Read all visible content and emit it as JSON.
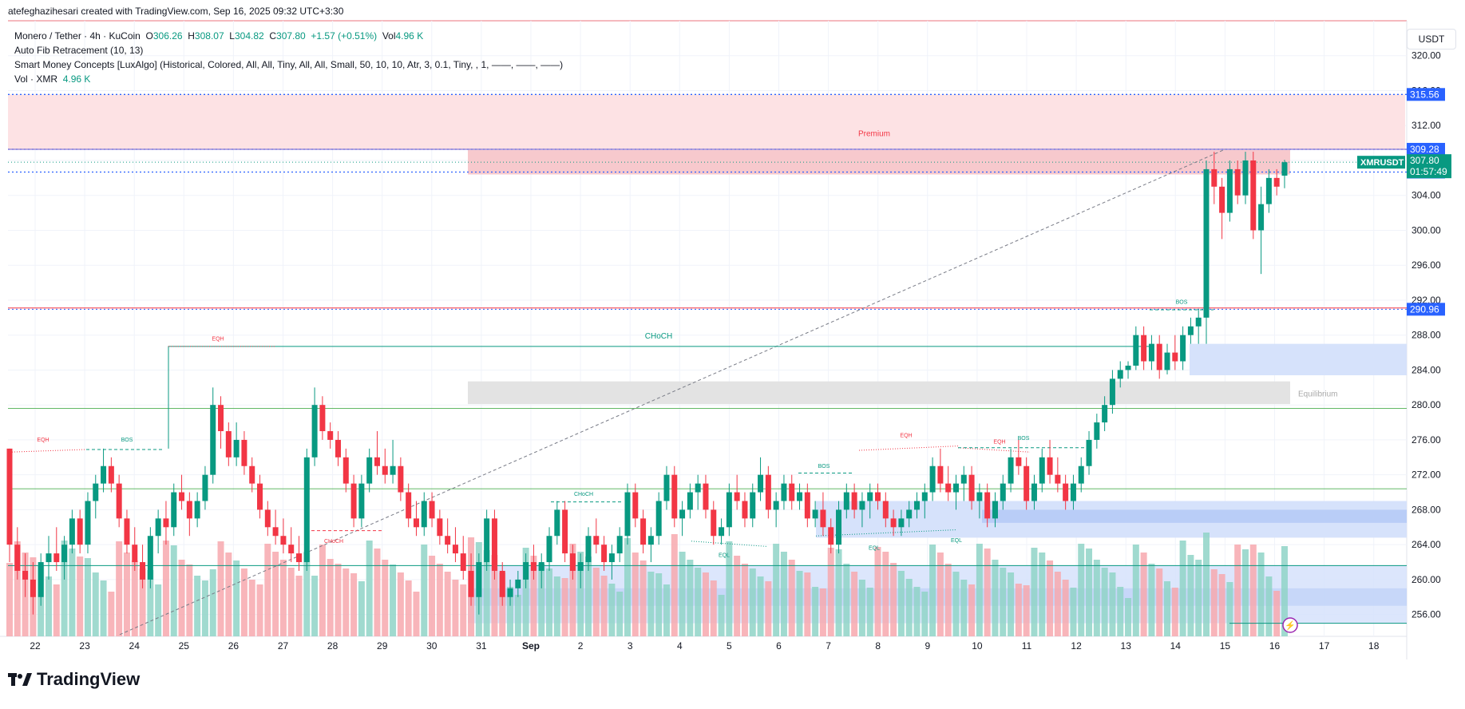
{
  "header": {
    "created_by": "atefeghazihesari created with TradingView.com, Sep 16, 2025 09:32 UTC+3:30"
  },
  "legend": {
    "symbol": "Monero / Tether · 4h · KuCoin",
    "o_label": "O",
    "o_value": "306.26",
    "h_label": "H",
    "h_value": "308.07",
    "l_label": "L",
    "l_value": "304.82",
    "c_label": "C",
    "c_value": "307.80",
    "change": "+1.57 (+0.51%)",
    "vol_label": "Vol",
    "vol_value": "4.96 K",
    "indicator1": "Auto Fib Retracement (10, 13)",
    "indicator2": "Smart Money Concepts [LuxAlgo] (Historical, Colored, All, All, Tiny, All, All, Small, 50, 10, 10, Atr, 3, 0.1, Tiny, , 1, ——, ——, ——)",
    "vol_indicator": "Vol · XMR",
    "vol_indicator_value": "4.96 K"
  },
  "y_axis": {
    "unit": "USDT",
    "ticks": [
      "320.00",
      "316.00",
      "312.00",
      "308.00",
      "304.00",
      "300.00",
      "296.00",
      "292.00",
      "288.00",
      "284.00",
      "280.00",
      "276.00",
      "272.00",
      "268.00",
      "264.00",
      "260.00",
      "256.00"
    ],
    "price_badges": [
      {
        "value": "315.56",
        "color": "#2962ff"
      },
      {
        "value": "309.28",
        "color": "#2962ff"
      },
      {
        "value": "306.67",
        "color": "#2962ff"
      },
      {
        "value": "290.96",
        "color": "#2962ff"
      }
    ],
    "current": {
      "symbol": "XMRUSDT",
      "price": "307.80",
      "countdown": "01:57:49",
      "color": "#089981"
    }
  },
  "x_axis": {
    "ticks": [
      "22",
      "23",
      "24",
      "25",
      "26",
      "27",
      "28",
      "29",
      "30",
      "31",
      "Sep",
      "2",
      "3",
      "4",
      "5",
      "6",
      "7",
      "8",
      "9",
      "10",
      "11",
      "12",
      "13",
      "14",
      "15",
      "16",
      "17",
      "18"
    ]
  },
  "annotations": {
    "premium": "Premium",
    "equilibrium": "Equilibrium",
    "choch_main": "CHoCH",
    "eqh": "EQH",
    "bos": "BOS",
    "eql": "EQL",
    "choch_small": "CHoCH"
  },
  "chart_data": {
    "type": "candlestick",
    "title": "",
    "xlabel": "",
    "ylabel": "",
    "ylim": [
      253.5,
      324
    ],
    "candles_ohlc": [
      [
        275.0,
        275.0,
        262.0,
        264.0
      ],
      [
        264.0,
        266.0,
        260.0,
        261.0
      ],
      [
        261.0,
        263.0,
        258.0,
        260.0
      ],
      [
        260.0,
        262.0,
        256.0,
        258.0
      ],
      [
        258.0,
        263.0,
        257.0,
        262.0
      ],
      [
        262.0,
        265.0,
        260.0,
        263.0
      ],
      [
        263.0,
        266.0,
        261.0,
        262.0
      ],
      [
        262.0,
        265.0,
        260.0,
        264.0
      ],
      [
        264.0,
        268.0,
        263.0,
        267.0
      ],
      [
        267.0,
        268.0,
        263.0,
        264.0
      ],
      [
        264.0,
        270.0,
        263.0,
        269.0
      ],
      [
        269.0,
        272.0,
        267.0,
        271.0
      ],
      [
        271.0,
        275.0,
        270.0,
        273.0
      ],
      [
        273.0,
        274.0,
        270.0,
        271.0
      ],
      [
        271.0,
        272.0,
        266.0,
        267.0
      ],
      [
        267.0,
        268.0,
        263.0,
        264.0
      ],
      [
        264.0,
        266.0,
        261.0,
        262.0
      ],
      [
        262.0,
        264.0,
        259.0,
        260.0
      ],
      [
        260.0,
        266.0,
        259.0,
        265.0
      ],
      [
        265.0,
        268.0,
        263.0,
        267.0
      ],
      [
        267.0,
        269.0,
        264.0,
        266.0
      ],
      [
        266.0,
        271.0,
        265.0,
        270.0
      ],
      [
        270.0,
        272.0,
        268.0,
        269.0
      ],
      [
        269.0,
        270.0,
        265.0,
        267.0
      ],
      [
        267.0,
        270.0,
        266.0,
        269.0
      ],
      [
        269.0,
        273.0,
        268.0,
        272.0
      ],
      [
        272.0,
        282.0,
        271.0,
        280.0
      ],
      [
        280.0,
        281.0,
        275.0,
        277.0
      ],
      [
        277.0,
        278.0,
        273.0,
        274.0
      ],
      [
        274.0,
        278.0,
        273.0,
        276.0
      ],
      [
        276.0,
        277.0,
        272.0,
        273.0
      ],
      [
        273.0,
        274.0,
        270.0,
        271.0
      ],
      [
        271.0,
        272.0,
        267.0,
        268.0
      ],
      [
        268.0,
        269.0,
        265.0,
        266.0
      ],
      [
        266.0,
        268.0,
        264.0,
        265.0
      ],
      [
        265.0,
        267.0,
        263.0,
        264.0
      ],
      [
        264.0,
        266.0,
        262.0,
        263.0
      ],
      [
        263.0,
        265.0,
        261.0,
        262.0
      ],
      [
        262.0,
        275.0,
        261.0,
        274.0
      ],
      [
        274.0,
        282.0,
        273.0,
        280.0
      ],
      [
        280.0,
        281.0,
        276.0,
        277.0
      ],
      [
        277.0,
        278.0,
        275.0,
        276.0
      ],
      [
        276.0,
        277.0,
        273.0,
        274.0
      ],
      [
        274.0,
        275.0,
        270.0,
        271.0
      ],
      [
        271.0,
        272.0,
        266.0,
        267.0
      ],
      [
        267.0,
        272.0,
        266.0,
        271.0
      ],
      [
        271.0,
        275.0,
        270.0,
        274.0
      ],
      [
        274.0,
        277.0,
        272.0,
        273.0
      ],
      [
        273.0,
        275.0,
        271.0,
        272.0
      ],
      [
        272.0,
        276.0,
        271.0,
        273.0
      ],
      [
        273.0,
        274.0,
        269.0,
        270.0
      ],
      [
        270.0,
        271.0,
        266.0,
        267.0
      ],
      [
        267.0,
        269.0,
        265.0,
        266.0
      ],
      [
        266.0,
        270.0,
        265.0,
        269.0
      ],
      [
        269.0,
        270.0,
        266.0,
        267.0
      ],
      [
        267.0,
        268.0,
        264.0,
        265.0
      ],
      [
        265.0,
        267.0,
        263.0,
        264.0
      ],
      [
        264.0,
        266.0,
        262.0,
        263.0
      ],
      [
        263.0,
        265.0,
        260.0,
        261.0
      ],
      [
        261.0,
        263.0,
        257.0,
        258.0
      ],
      [
        258.0,
        263.0,
        256.0,
        262.0
      ],
      [
        262.0,
        268.0,
        261.0,
        267.0
      ],
      [
        267.0,
        268.0,
        260.0,
        261.0
      ],
      [
        261.0,
        262.0,
        257.0,
        258.0
      ],
      [
        258.0,
        260.0,
        257.0,
        259.0
      ],
      [
        259.0,
        261.0,
        258.0,
        260.0
      ],
      [
        260.0,
        263.0,
        259.0,
        262.0
      ],
      [
        262.0,
        264.0,
        260.0,
        261.0
      ],
      [
        261.0,
        263.0,
        259.0,
        262.0
      ],
      [
        262.0,
        266.0,
        261.0,
        265.0
      ],
      [
        265.0,
        269.0,
        264.0,
        268.0
      ],
      [
        268.0,
        269.0,
        262.0,
        263.0
      ],
      [
        263.0,
        264.0,
        260.0,
        261.0
      ],
      [
        261.0,
        263.0,
        259.0,
        262.0
      ],
      [
        262.0,
        266.0,
        261.0,
        265.0
      ],
      [
        265.0,
        267.0,
        263.0,
        264.0
      ],
      [
        264.0,
        265.0,
        261.0,
        262.0
      ],
      [
        262.0,
        264.0,
        260.0,
        263.0
      ],
      [
        263.0,
        266.0,
        262.0,
        265.0
      ],
      [
        265.0,
        271.0,
        264.0,
        270.0
      ],
      [
        270.0,
        271.0,
        266.0,
        267.0
      ],
      [
        267.0,
        268.0,
        263.0,
        264.0
      ],
      [
        264.0,
        266.0,
        262.0,
        265.0
      ],
      [
        265.0,
        270.0,
        264.0,
        269.0
      ],
      [
        269.0,
        273.0,
        268.0,
        272.0
      ],
      [
        272.0,
        273.0,
        266.0,
        267.0
      ],
      [
        267.0,
        269.0,
        265.0,
        268.0
      ],
      [
        268.0,
        271.0,
        267.0,
        270.0
      ],
      [
        270.0,
        272.0,
        268.0,
        271.0
      ],
      [
        271.0,
        272.0,
        267.0,
        268.0
      ],
      [
        268.0,
        269.0,
        264.0,
        265.0
      ],
      [
        265.0,
        267.0,
        264.0,
        266.0
      ],
      [
        266.0,
        271.0,
        265.0,
        270.0
      ],
      [
        270.0,
        272.0,
        268.0,
        269.0
      ],
      [
        269.0,
        270.0,
        266.0,
        267.0
      ],
      [
        267.0,
        271.0,
        266.0,
        270.0
      ],
      [
        270.0,
        274.0,
        269.0,
        272.0
      ],
      [
        272.0,
        273.0,
        267.0,
        268.0
      ],
      [
        268.0,
        270.0,
        266.0,
        269.0
      ],
      [
        269.0,
        272.0,
        268.0,
        271.0
      ],
      [
        271.0,
        272.0,
        268.0,
        269.0
      ],
      [
        269.0,
        271.0,
        268.0,
        270.0
      ],
      [
        270.0,
        271.0,
        266.0,
        267.0
      ],
      [
        267.0,
        269.0,
        266.0,
        268.0
      ],
      [
        268.0,
        270.0,
        265.0,
        266.0
      ],
      [
        266.0,
        267.0,
        263.0,
        264.0
      ],
      [
        264.0,
        269.0,
        263.0,
        268.0
      ],
      [
        268.0,
        271.0,
        267.0,
        270.0
      ],
      [
        270.0,
        271.0,
        267.0,
        268.0
      ],
      [
        268.0,
        270.0,
        266.0,
        269.0
      ],
      [
        269.0,
        271.0,
        267.0,
        270.0
      ],
      [
        270.0,
        271.0,
        268.0,
        269.0
      ],
      [
        269.0,
        270.0,
        266.0,
        267.0
      ],
      [
        267.0,
        268.0,
        265.0,
        266.0
      ],
      [
        266.0,
        268.0,
        265.0,
        267.0
      ],
      [
        267.0,
        269.0,
        266.0,
        268.0
      ],
      [
        268.0,
        270.0,
        267.0,
        269.0
      ],
      [
        269.0,
        271.0,
        267.0,
        270.0
      ],
      [
        270.0,
        274.0,
        269.0,
        273.0
      ],
      [
        273.0,
        275.0,
        270.0,
        271.0
      ],
      [
        271.0,
        273.0,
        269.0,
        270.0
      ],
      [
        270.0,
        272.0,
        268.0,
        271.0
      ],
      [
        271.0,
        273.0,
        269.0,
        272.0
      ],
      [
        272.0,
        273.0,
        268.0,
        269.0
      ],
      [
        269.0,
        271.0,
        267.0,
        270.0
      ],
      [
        270.0,
        271.0,
        266.0,
        267.0
      ],
      [
        267.0,
        270.0,
        266.0,
        269.0
      ],
      [
        269.0,
        272.0,
        268.0,
        271.0
      ],
      [
        271.0,
        275.0,
        270.0,
        274.0
      ],
      [
        274.0,
        276.0,
        272.0,
        273.0
      ],
      [
        273.0,
        274.0,
        268.0,
        269.0
      ],
      [
        269.0,
        272.0,
        268.0,
        271.0
      ],
      [
        271.0,
        275.0,
        270.0,
        274.0
      ],
      [
        274.0,
        276.0,
        271.0,
        272.0
      ],
      [
        272.0,
        274.0,
        270.0,
        271.0
      ],
      [
        271.0,
        272.0,
        268.0,
        269.0
      ],
      [
        269.0,
        272.0,
        268.0,
        271.0
      ],
      [
        271.0,
        274.0,
        270.0,
        273.0
      ],
      [
        273.0,
        277.0,
        272.0,
        276.0
      ],
      [
        276.0,
        279.0,
        275.0,
        278.0
      ],
      [
        278.0,
        281.0,
        277.0,
        280.0
      ],
      [
        280.0,
        284.0,
        279.0,
        283.0
      ],
      [
        283.0,
        285.0,
        282.0,
        284.0
      ],
      [
        284.0,
        285.0,
        283.0,
        284.5
      ],
      [
        284.5,
        289.0,
        284.0,
        288.0
      ],
      [
        288.0,
        289.0,
        284.0,
        285.0
      ],
      [
        285.0,
        288.0,
        284.0,
        287.0
      ],
      [
        287.0,
        288.0,
        283.0,
        284.0
      ],
      [
        284.0,
        287.0,
        283.5,
        286.0
      ],
      [
        286.0,
        288.0,
        284.0,
        285.0
      ],
      [
        285.0,
        289.0,
        284.0,
        288.0
      ],
      [
        288.0,
        290.0,
        287.0,
        289.0
      ],
      [
        289.0,
        291.0,
        287.0,
        290.0
      ],
      [
        290.0,
        308.0,
        287.0,
        307.0
      ],
      [
        307.0,
        309.0,
        303.0,
        305.0
      ],
      [
        305.0,
        306.0,
        299.0,
        302.0
      ],
      [
        302.0,
        308.0,
        301.0,
        307.0
      ],
      [
        307.0,
        308.0,
        303.0,
        304.0
      ],
      [
        304.0,
        309.0,
        303.0,
        308.0
      ],
      [
        308.0,
        309.0,
        299.0,
        300.0
      ],
      [
        300.0,
        305.0,
        295.0,
        303.0
      ],
      [
        303.0,
        307.0,
        302.0,
        306.0
      ],
      [
        306.0,
        307.0,
        304.0,
        305.0
      ],
      [
        306.26,
        308.07,
        304.82,
        307.8
      ]
    ],
    "levels": [
      315.56,
      309.28,
      306.67,
      290.96
    ],
    "zones": [
      {
        "label": "Premium",
        "top": 315.56,
        "bottom": 309.28
      },
      {
        "label": "Equilibrium",
        "top": 282.7,
        "bottom": 280.1
      }
    ]
  }
}
